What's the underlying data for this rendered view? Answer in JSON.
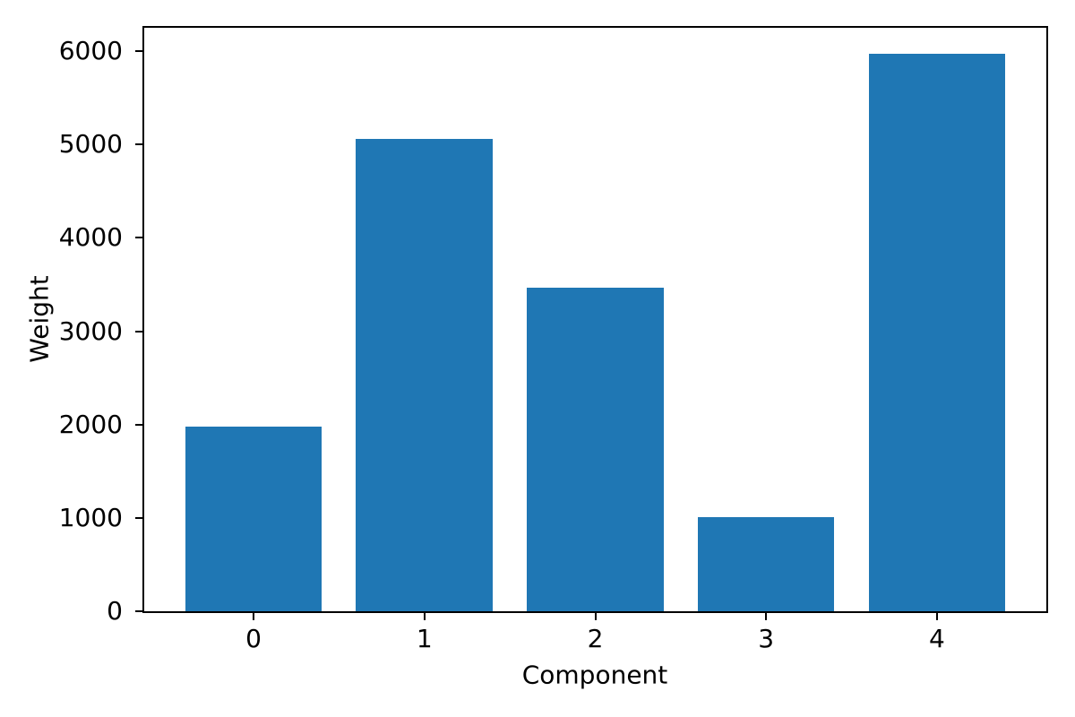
{
  "chart_data": {
    "type": "bar",
    "title": "",
    "xlabel": "Component",
    "ylabel": "Weight",
    "categories": [
      "0",
      "1",
      "2",
      "3",
      "4"
    ],
    "values": [
      1975,
      5055,
      3470,
      1010,
      5970
    ],
    "x_positions": [
      0,
      1,
      2,
      3,
      4
    ],
    "bar_width": 0.8,
    "bar_color": "#1f77b4",
    "xlim": [
      -0.64,
      4.64
    ],
    "ylim": [
      0,
      6250
    ],
    "yticks": [
      0,
      1000,
      2000,
      3000,
      4000,
      5000,
      6000
    ],
    "ytick_labels": [
      "0",
      "1000",
      "2000",
      "3000",
      "4000",
      "5000",
      "6000"
    ],
    "grid": false,
    "legend": null,
    "spine_color": "#000000",
    "background_color": "#ffffff"
  }
}
